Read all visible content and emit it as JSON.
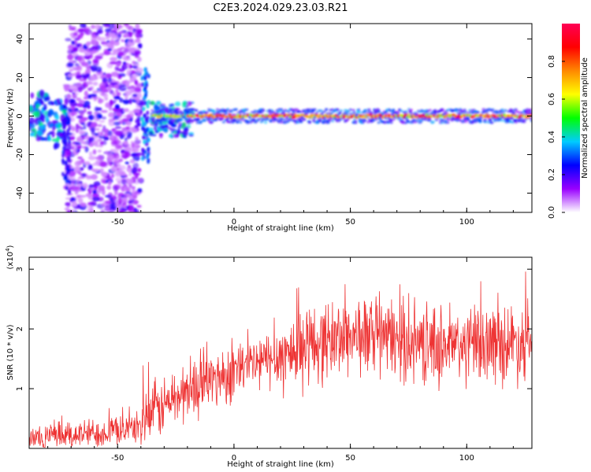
{
  "figure_title": "C2E3.2024.029.23.03.R21",
  "chart_data": [
    {
      "type": "heatmap",
      "xlabel": "Height of straight line (km)",
      "ylabel": "Frequency (Hz)",
      "xlim": [
        -88,
        128
      ],
      "ylim": [
        -50,
        48
      ],
      "x_ticks": [
        -50,
        0,
        50,
        100
      ],
      "y_ticks": [
        -40,
        -20,
        0,
        20,
        40
      ],
      "colorbar": {
        "label": "Normalized spectral amplitude",
        "range": [
          0,
          1
        ],
        "ticks": [
          0.0,
          0.2,
          0.4,
          0.6,
          0.8
        ],
        "colormap": [
          "#ffffff",
          "#9900ff",
          "#0000ff",
          "#00ccff",
          "#00ff00",
          "#ffff00",
          "#ff8800",
          "#ff0000",
          "#ff0055"
        ]
      },
      "features": {
        "scatter_region_x": [
          -72,
          -40
        ],
        "scatter_region_y": [
          -50,
          48
        ],
        "band_center_hz": 0,
        "band_start_x": -35,
        "band_end_x": 128
      }
    },
    {
      "type": "line",
      "xlabel": "Height of straight line (km)",
      "ylabel": "SNR (10 * v/v)",
      "y_multiplier": "(x10",
      "y_multiplier_exp": "4",
      "y_multiplier_close": ")",
      "xlim": [
        -88,
        128
      ],
      "ylim": [
        0,
        3.2
      ],
      "x_ticks": [
        -50,
        0,
        50,
        100
      ],
      "y_ticks": [
        1,
        2,
        3
      ],
      "line_color": "#ee3333",
      "trend_points": [
        {
          "x": -88,
          "y": 0.15
        },
        {
          "x": -70,
          "y": 0.22
        },
        {
          "x": -55,
          "y": 0.28
        },
        {
          "x": -42,
          "y": 0.35
        },
        {
          "x": -35,
          "y": 0.6
        },
        {
          "x": -25,
          "y": 0.85
        },
        {
          "x": -10,
          "y": 1.15
        },
        {
          "x": 5,
          "y": 1.35
        },
        {
          "x": 20,
          "y": 1.55
        },
        {
          "x": 35,
          "y": 1.75
        },
        {
          "x": 50,
          "y": 1.9
        },
        {
          "x": 65,
          "y": 1.85
        },
        {
          "x": 80,
          "y": 1.75
        },
        {
          "x": 95,
          "y": 1.7
        },
        {
          "x": 110,
          "y": 1.75
        },
        {
          "x": 128,
          "y": 1.8
        }
      ]
    }
  ]
}
